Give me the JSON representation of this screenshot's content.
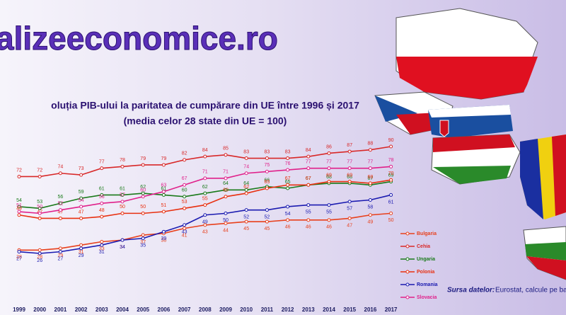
{
  "header": {
    "site": "alizeeconomice.ro"
  },
  "chart_data": {
    "type": "line",
    "title": "oluția PIB-ului la paritatea de cumpărare din UE între 1996 și 2017",
    "subtitle": "(media celor 28 state din UE = 100)",
    "categories": [
      "1999",
      "2000",
      "2001",
      "2002",
      "2003",
      "2004",
      "2005",
      "2006",
      "2007",
      "2008",
      "2009",
      "2010",
      "2011",
      "2012",
      "2013",
      "2014",
      "2015",
      "2016",
      "2017"
    ],
    "series": [
      {
        "name": "Bulgaria",
        "color": "#e8401c",
        "values": [
          28,
          28,
          29,
          31,
          33,
          34,
          37,
          38,
          41,
          43,
          44,
          45,
          45,
          46,
          46,
          46,
          47,
          49,
          50
        ]
      },
      {
        "name": "Cehia",
        "color": "#d82828",
        "values": [
          72,
          72,
          74,
          73,
          77,
          78,
          79,
          79,
          82,
          84,
          85,
          83,
          83,
          83,
          84,
          86,
          87,
          88,
          90
        ]
      },
      {
        "name": "Ungaria",
        "color": "#1a7a1a",
        "values": [
          54,
          53,
          56,
          59,
          61,
          61,
          62,
          61,
          60,
          62,
          64,
          64,
          66,
          65,
          67,
          68,
          68,
          67,
          69
        ]
      },
      {
        "name": "Polonia",
        "color": "#e83010",
        "values": [
          49,
          47,
          47,
          47,
          48,
          50,
          50,
          51,
          53,
          55,
          60,
          62,
          65,
          67,
          67,
          69,
          69,
          68,
          70
        ]
      },
      {
        "name": "Romania",
        "color": "#1a1ab0",
        "values": [
          27,
          26,
          27,
          29,
          31,
          34,
          35,
          39,
          43,
          49,
          50,
          52,
          52,
          54,
          55,
          55,
          57,
          58,
          61
        ]
      },
      {
        "name": "Slovacia",
        "color": "#e0208a",
        "values": [
          51,
          50,
          52,
          54,
          56,
          57,
          60,
          63,
          67,
          71,
          71,
          74,
          75,
          76,
          77,
          77,
          77,
          77,
          78
        ]
      }
    ]
  },
  "source": {
    "label": "Sursa datelor:",
    "text": "Eurostat, calcule pe baza datelor Eurostat."
  }
}
